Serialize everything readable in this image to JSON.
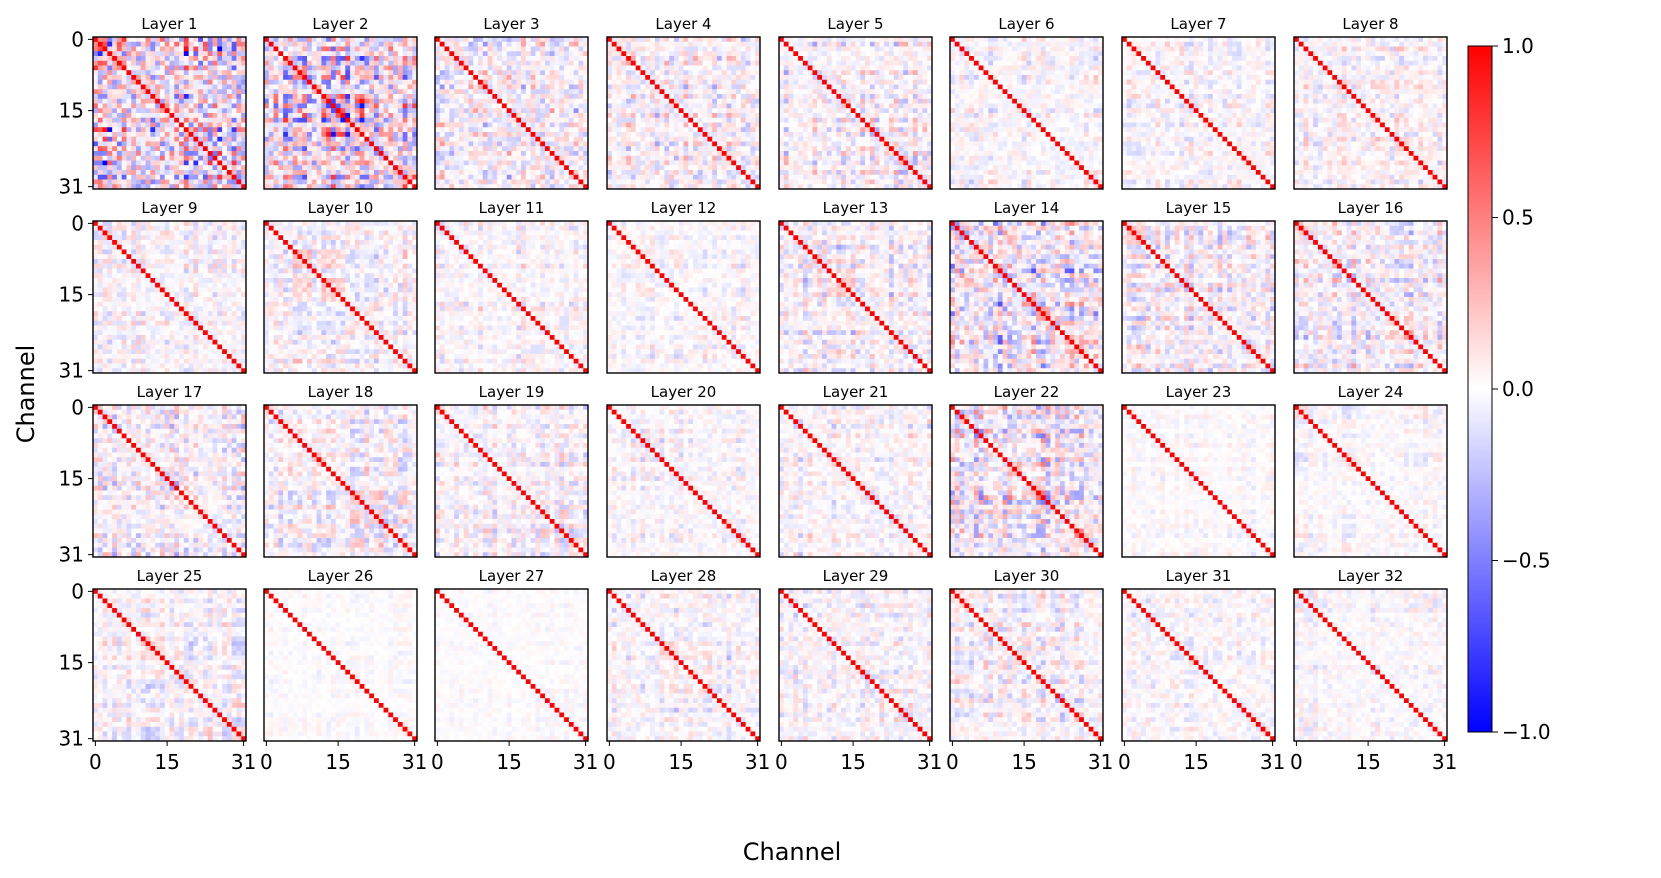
{
  "figure": {
    "xlabel": "Channel",
    "ylabel": "Channel"
  },
  "chart_data": {
    "type": "heatmap",
    "description_free": true,
    "layers": [
      "Layer 1",
      "Layer 2",
      "Layer 3",
      "Layer 4",
      "Layer 5",
      "Layer 6",
      "Layer 7",
      "Layer 8",
      "Layer 9",
      "Layer 10",
      "Layer 11",
      "Layer 12",
      "Layer 13",
      "Layer 14",
      "Layer 15",
      "Layer 16",
      "Layer 17",
      "Layer 18",
      "Layer 19",
      "Layer 20",
      "Layer 21",
      "Layer 22",
      "Layer 23",
      "Layer 24",
      "Layer 25",
      "Layer 26",
      "Layer 27",
      "Layer 28",
      "Layer 29",
      "Layer 30",
      "Layer 31",
      "Layer 32"
    ],
    "matrix_size": 32,
    "diagonal_value": 1.0,
    "x_ticks": [
      0,
      15,
      31
    ],
    "y_ticks": [
      0,
      15,
      31
    ],
    "layer_off_diagonal_strength": [
      0.95,
      0.8,
      0.45,
      0.35,
      0.3,
      0.22,
      0.22,
      0.25,
      0.22,
      0.28,
      0.2,
      0.18,
      0.3,
      0.6,
      0.3,
      0.35,
      0.35,
      0.3,
      0.22,
      0.2,
      0.25,
      0.5,
      0.1,
      0.15,
      0.25,
      0.08,
      0.08,
      0.25,
      0.25,
      0.25,
      0.2,
      0.15
    ],
    "colorbar": {
      "min": -1.0,
      "max": 1.0,
      "ticks": [
        1.0,
        0.5,
        0.0,
        -0.5,
        -1.0
      ],
      "tick_labels": [
        "1.0",
        "0.5",
        "0.0",
        "−0.5",
        "−1.0"
      ],
      "colormap": "bwr",
      "color_low": "#0000ff",
      "color_mid": "#ffffff",
      "color_high": "#ff0000"
    }
  }
}
